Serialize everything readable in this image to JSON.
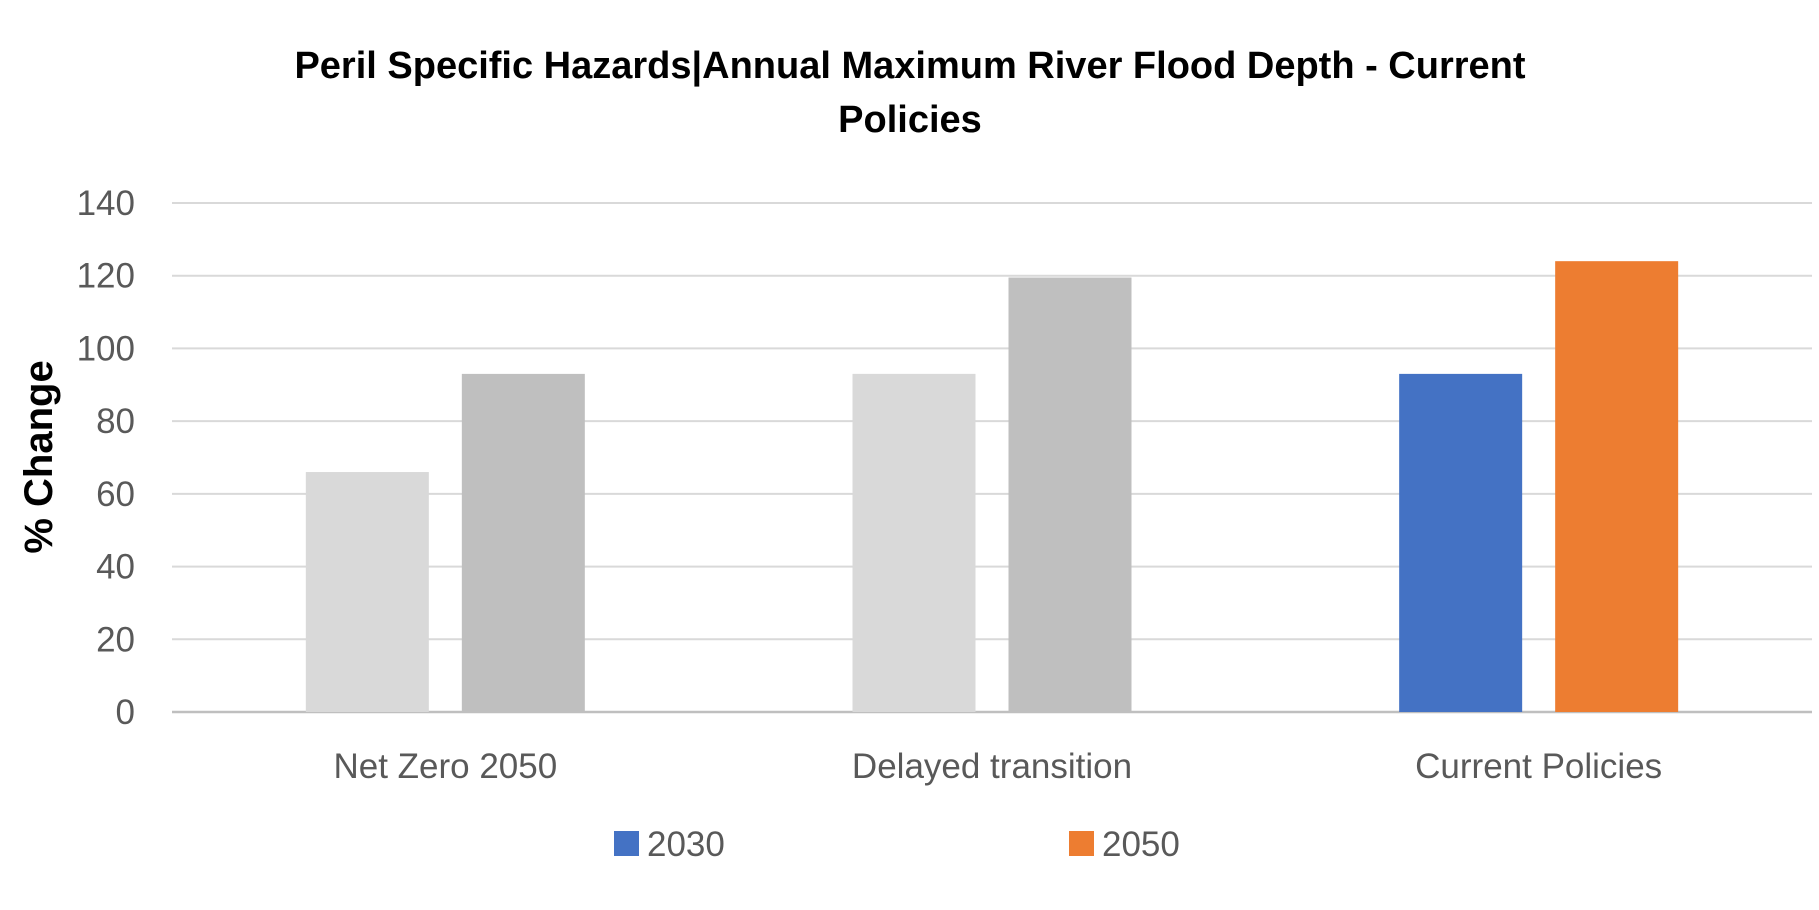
{
  "chart_data": {
    "type": "bar",
    "title_lines": [
      "Peril Specific Hazards|Annual Maximum River Flood Depth - Current",
      "Policies"
    ],
    "ylabel": "% Change",
    "xlabel": "",
    "ylim": [
      0,
      140
    ],
    "yticks": [
      0,
      20,
      40,
      60,
      80,
      100,
      120,
      140
    ],
    "ytick_labels": [
      "0",
      "20",
      "40",
      "60",
      "80",
      "100",
      "120",
      "140"
    ],
    "grid": true,
    "categories": [
      "Net Zero 2050",
      "Delayed transition",
      "Current Policies"
    ],
    "series": [
      {
        "name": "2030",
        "values": [
          66,
          93,
          93
        ],
        "colors": [
          "#d9d9d9",
          "#d9d9d9",
          "#4472c4"
        ]
      },
      {
        "name": "2050",
        "values": [
          93,
          119.5,
          124
        ],
        "colors": [
          "#bfbfbf",
          "#bfbfbf",
          "#ed7d31"
        ]
      }
    ],
    "legend": {
      "position": "bottom",
      "items": [
        {
          "label": "2030",
          "color": "#4472c4"
        },
        {
          "label": "2050",
          "color": "#ed7d31"
        }
      ]
    }
  }
}
